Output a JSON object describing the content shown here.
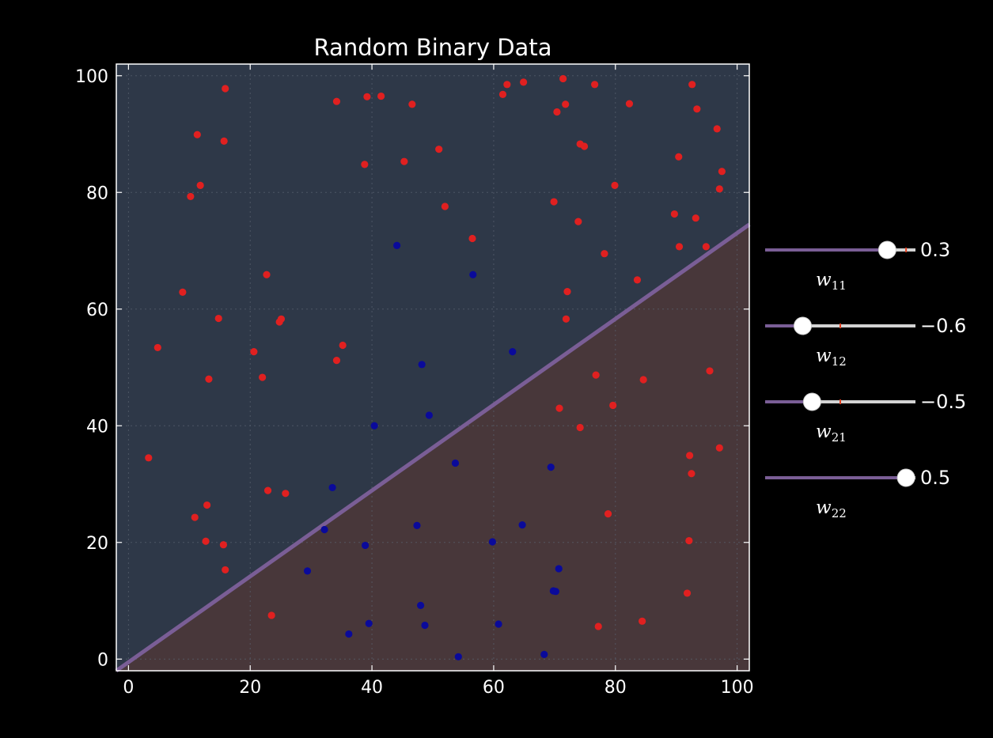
{
  "chart_data": {
    "type": "scatter",
    "title": "Random Binary Data",
    "xlabel": "",
    "ylabel": "",
    "xlim": [
      -2,
      102
    ],
    "ylim": [
      -2,
      102
    ],
    "xticks": [
      0,
      20,
      40,
      60,
      80,
      100
    ],
    "yticks": [
      0,
      20,
      40,
      60,
      80,
      100
    ],
    "grid": true,
    "decision_boundary": {
      "x": [
        -2,
        102
      ],
      "y": [
        -2,
        74.5
      ]
    },
    "series": [
      {
        "color": "#e02020",
        "points": [
          [
            15.9,
            97.8
          ],
          [
            11.3,
            89.9
          ],
          [
            15.7,
            88.8
          ],
          [
            11.8,
            81.2
          ],
          [
            10.2,
            79.3
          ],
          [
            8.9,
            62.9
          ],
          [
            4.8,
            53.4
          ],
          [
            14.8,
            58.4
          ],
          [
            3.3,
            34.5
          ],
          [
            13.2,
            48.0
          ],
          [
            12.9,
            26.4
          ],
          [
            10.9,
            24.3
          ],
          [
            12.7,
            20.2
          ],
          [
            15.6,
            19.6
          ],
          [
            15.9,
            15.3
          ],
          [
            20.6,
            52.7
          ],
          [
            22.0,
            48.3
          ],
          [
            22.7,
            65.9
          ],
          [
            24.8,
            57.8
          ],
          [
            25.1,
            58.3
          ],
          [
            22.9,
            28.9
          ],
          [
            25.8,
            28.4
          ],
          [
            23.5,
            7.5
          ],
          [
            34.2,
            95.6
          ],
          [
            39.2,
            96.4
          ],
          [
            41.5,
            96.5
          ],
          [
            38.8,
            84.8
          ],
          [
            34.2,
            51.2
          ],
          [
            35.2,
            53.8
          ],
          [
            46.6,
            95.1
          ],
          [
            45.3,
            85.3
          ],
          [
            51.0,
            87.4
          ],
          [
            52.0,
            77.6
          ],
          [
            56.5,
            72.1
          ],
          [
            61.5,
            96.8
          ],
          [
            62.2,
            98.5
          ],
          [
            64.9,
            98.9
          ],
          [
            71.4,
            99.5
          ],
          [
            76.6,
            98.5
          ],
          [
            70.4,
            93.8
          ],
          [
            71.8,
            95.1
          ],
          [
            74.2,
            88.3
          ],
          [
            74.9,
            87.9
          ],
          [
            69.9,
            78.4
          ],
          [
            73.9,
            75.0
          ],
          [
            78.2,
            69.5
          ],
          [
            79.9,
            81.2
          ],
          [
            82.3,
            95.2
          ],
          [
            72.1,
            63.0
          ],
          [
            71.9,
            58.3
          ],
          [
            83.6,
            65.0
          ],
          [
            89.7,
            76.3
          ],
          [
            90.5,
            70.7
          ],
          [
            94.9,
            70.7
          ],
          [
            92.6,
            98.5
          ],
          [
            93.4,
            94.3
          ],
          [
            96.7,
            90.9
          ],
          [
            90.4,
            86.1
          ],
          [
            97.5,
            83.6
          ],
          [
            97.1,
            80.6
          ],
          [
            93.2,
            75.6
          ],
          [
            76.8,
            48.7
          ],
          [
            84.6,
            47.9
          ],
          [
            95.5,
            49.4
          ],
          [
            70.8,
            43.0
          ],
          [
            79.6,
            43.5
          ],
          [
            74.2,
            39.7
          ],
          [
            92.2,
            34.9
          ],
          [
            97.1,
            36.2
          ],
          [
            92.5,
            31.8
          ],
          [
            78.8,
            24.9
          ],
          [
            92.1,
            20.3
          ],
          [
            91.8,
            11.3
          ],
          [
            84.4,
            6.5
          ],
          [
            77.2,
            5.6
          ]
        ]
      },
      {
        "color": "#0a0a9a",
        "points": [
          [
            44.1,
            70.9
          ],
          [
            56.6,
            65.9
          ],
          [
            63.1,
            52.7
          ],
          [
            48.2,
            50.5
          ],
          [
            49.4,
            41.8
          ],
          [
            40.4,
            40.0
          ],
          [
            33.5,
            29.4
          ],
          [
            32.2,
            22.2
          ],
          [
            29.4,
            15.1
          ],
          [
            38.9,
            19.5
          ],
          [
            47.4,
            22.9
          ],
          [
            36.2,
            4.3
          ],
          [
            39.5,
            6.1
          ],
          [
            48.0,
            9.2
          ],
          [
            48.7,
            5.8
          ],
          [
            53.7,
            33.6
          ],
          [
            59.8,
            20.1
          ],
          [
            64.7,
            23.0
          ],
          [
            60.8,
            6.0
          ],
          [
            54.2,
            0.4
          ],
          [
            69.4,
            32.9
          ],
          [
            70.7,
            15.5
          ],
          [
            69.8,
            11.7
          ],
          [
            70.2,
            11.6
          ],
          [
            68.3,
            0.8
          ]
        ]
      }
    ]
  },
  "colors": {
    "background": "#000000",
    "region_upper": "#2e3848",
    "region_lower": "#48373a",
    "boundary_line": "#7a5e96",
    "slider_fill": "#7a5e96",
    "slider_track": "#d3d3d3",
    "slider_init_marker": "#e04020"
  },
  "sliders": [
    {
      "name": "w11",
      "label_main": "w",
      "label_sub": "11",
      "value": 0.3,
      "value_text": "0.3",
      "min": -1,
      "max": 0.6,
      "init": 0.5
    },
    {
      "name": "w12",
      "label_main": "w",
      "label_sub": "12",
      "value": -0.6,
      "value_text": "−0.6",
      "min": -1,
      "max": 0.6,
      "init": -0.2
    },
    {
      "name": "w21",
      "label_main": "w",
      "label_sub": "21",
      "value": -0.5,
      "value_text": "−0.5",
      "min": -1,
      "max": 0.6,
      "init": -0.2
    },
    {
      "name": "w22",
      "label_main": "w",
      "label_sub": "22",
      "value": 0.5,
      "value_text": "0.5",
      "min": -1,
      "max": 0.6,
      "init": 0.5
    }
  ]
}
